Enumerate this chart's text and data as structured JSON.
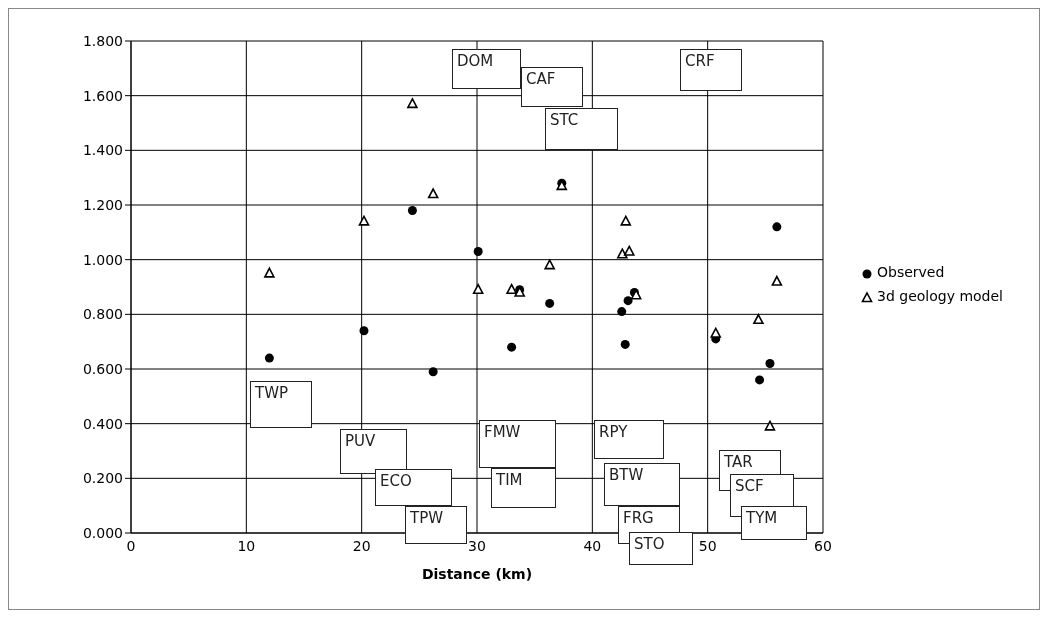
{
  "chart_data": {
    "type": "scatter",
    "xlabel": "Distance (km)",
    "xlim": [
      0,
      60
    ],
    "xticks": [
      0,
      10,
      20,
      30,
      40,
      50,
      60
    ],
    "ylim": [
      0,
      1.8
    ],
    "yticks": [
      {
        "value": 0,
        "label": "0.000"
      },
      {
        "value": 0.2,
        "label": "0.200"
      },
      {
        "value": 0.4,
        "label": "0.400"
      },
      {
        "value": 0.6,
        "label": "0.600"
      },
      {
        "value": 0.8,
        "label": "0.800"
      },
      {
        "value": 1.0,
        "label": "1.000"
      },
      {
        "value": 1.2,
        "label": "1.200"
      },
      {
        "value": 1.4,
        "label": "1.400"
      },
      {
        "value": 1.6,
        "label": "1.600"
      },
      {
        "value": 1.8,
        "label": "1.800"
      }
    ],
    "grid": true,
    "legend": "right",
    "series": [
      {
        "name": "Observed",
        "color": "#000000",
        "marker": "circle",
        "x": [
          12.0,
          20.2,
          24.4,
          26.2,
          30.1,
          33.0,
          33.7,
          36.3,
          37.35,
          42.55,
          42.85,
          43.1,
          43.65,
          50.7,
          54.5,
          55.4,
          56.0
        ],
        "values": [
          0.64,
          0.74,
          1.18,
          0.59,
          1.03,
          0.68,
          0.89,
          0.84,
          1.28,
          0.81,
          0.69,
          0.85,
          0.88,
          0.71,
          0.56,
          0.62,
          1.12
        ]
      },
      {
        "name": "3d geology model",
        "color": "#000000",
        "marker": "triangle",
        "x": [
          12.0,
          20.2,
          24.4,
          26.2,
          30.1,
          33.0,
          33.7,
          36.3,
          37.35,
          42.6,
          42.9,
          43.2,
          43.8,
          50.7,
          54.4,
          55.4,
          56.0
        ],
        "values": [
          0.95,
          1.14,
          1.57,
          1.24,
          0.89,
          0.89,
          0.88,
          0.98,
          1.27,
          1.02,
          1.14,
          1.03,
          0.87,
          0.73,
          0.78,
          0.39,
          0.92
        ]
      }
    ],
    "annotations": [
      "TWP",
      "PUV",
      "ECO",
      "TPW",
      "FMW",
      "TIM",
      "RPY",
      "BTW",
      "FRG",
      "STO",
      "TAR",
      "SCF",
      "TYM",
      "DOM",
      "CAF",
      "STC",
      "CRF"
    ]
  }
}
